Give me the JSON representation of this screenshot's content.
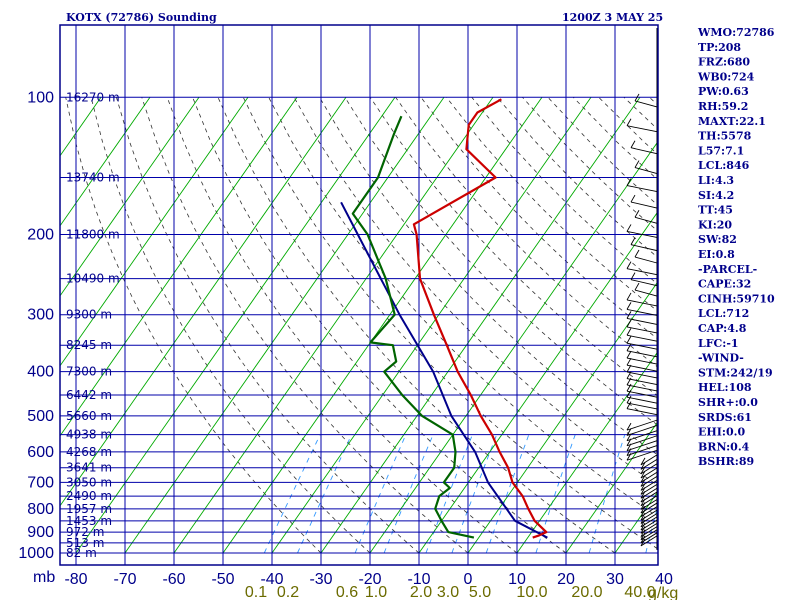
{
  "chart_data": {
    "type": "skew-t",
    "title": "KOTX (72786) Sounding",
    "valid_time": "1200Z  3 MAY 25",
    "y_axis": {
      "label": "mb",
      "pressure_ticks": [
        "100",
        "200",
        "300",
        "400",
        "500",
        "600",
        "700",
        "800",
        "900",
        "1000"
      ],
      "pressure_values": [
        100,
        200,
        300,
        400,
        500,
        600,
        700,
        800,
        900,
        1000
      ]
    },
    "x_axis": {
      "temperature_ticks": [
        "-80",
        "-70",
        "-60",
        "-50",
        "-40",
        "-30",
        "-20",
        "-10",
        "0",
        "10",
        "20",
        "30",
        "40"
      ],
      "mixing_ratio_labels": [
        "0.1",
        "0.2",
        "0.6",
        "1.0",
        "2.0",
        "3.0",
        "5.0",
        "10.0",
        "20.0",
        "40.0"
      ],
      "mixing_ratio_unit": "g/kg"
    },
    "height_labels": [
      {
        "p": 100,
        "text": "16270 m"
      },
      {
        "p": 150,
        "text": "13740 m"
      },
      {
        "p": 200,
        "text": "11800 m"
      },
      {
        "p": 250,
        "text": "10490 m"
      },
      {
        "p": 300,
        "text": "9300 m"
      },
      {
        "p": 350,
        "text": "8245 m"
      },
      {
        "p": 400,
        "text": "7300 m"
      },
      {
        "p": 450,
        "text": "6442 m"
      },
      {
        "p": 500,
        "text": "5660 m"
      },
      {
        "p": 550,
        "text": "4938 m"
      },
      {
        "p": 600,
        "text": "4268 m"
      },
      {
        "p": 650,
        "text": "3641 m"
      },
      {
        "p": 700,
        "text": "3050 m"
      },
      {
        "p": 750,
        "text": "2490 m"
      },
      {
        "p": 800,
        "text": "1957 m"
      },
      {
        "p": 850,
        "text": "1453 m"
      },
      {
        "p": 900,
        "text": "972 m"
      },
      {
        "p": 950,
        "text": "513 m"
      },
      {
        "p": 1000,
        "text": "82 m"
      }
    ],
    "temperature_profile": {
      "color": "#cc0000",
      "points": [
        [
          925,
          11
        ],
        [
          915,
          12
        ],
        [
          900,
          13
        ],
        [
          850,
          9
        ],
        [
          800,
          6
        ],
        [
          750,
          3
        ],
        [
          700,
          -1
        ],
        [
          650,
          -4
        ],
        [
          600,
          -8
        ],
        [
          550,
          -12
        ],
        [
          500,
          -17
        ],
        [
          450,
          -22
        ],
        [
          400,
          -28
        ],
        [
          350,
          -34
        ],
        [
          300,
          -41
        ],
        [
          250,
          -49
        ],
        [
          200,
          -56
        ],
        [
          190,
          -58
        ],
        [
          150,
          -48
        ],
        [
          130,
          -58
        ],
        [
          115,
          -61
        ],
        [
          108,
          -61
        ],
        [
          101,
          -58
        ]
      ]
    },
    "dewpoint_profile": {
      "color": "#006400",
      "points": [
        [
          925,
          -1
        ],
        [
          900,
          -7
        ],
        [
          850,
          -10
        ],
        [
          800,
          -13
        ],
        [
          750,
          -14
        ],
        [
          720,
          -13
        ],
        [
          700,
          -15
        ],
        [
          650,
          -15
        ],
        [
          600,
          -17
        ],
        [
          550,
          -20
        ],
        [
          500,
          -29
        ],
        [
          450,
          -36
        ],
        [
          400,
          -43
        ],
        [
          380,
          -42
        ],
        [
          350,
          -45
        ],
        [
          345,
          -50
        ],
        [
          300,
          -49
        ],
        [
          250,
          -56
        ],
        [
          200,
          -66
        ],
        [
          180,
          -72
        ],
        [
          150,
          -72
        ],
        [
          120,
          -75
        ],
        [
          110,
          -76
        ]
      ]
    },
    "parcel_profile": {
      "color": "#00008b",
      "points": [
        [
          925,
          14
        ],
        [
          850,
          5
        ],
        [
          700,
          -6
        ],
        [
          600,
          -13
        ],
        [
          500,
          -23
        ],
        [
          400,
          -33
        ],
        [
          300,
          -48
        ],
        [
          200,
          -68
        ],
        [
          170,
          -76
        ]
      ]
    },
    "indices": [
      "WMO:72786",
      "TP:208",
      "FRZ:680",
      "WB0:724",
      "PW:0.63",
      "RH:59.2",
      "MAXT:22.1",
      "TH:5578",
      "L57:7.1",
      "LCL:846",
      "LI:4.3",
      "SI:4.2",
      "TT:45",
      "KI:20",
      "SW:82",
      "EI:0.8",
      "-PARCEL-",
      "CAPE:32",
      "CINH:59710",
      "LCL:712",
      "CAP:4.8",
      "LFC:-1",
      "-WIND-",
      "STM:242/19",
      "HEL:108",
      "SHR+:0.0",
      "SRDS:61",
      "EHI:0.0",
      "BRN:0.4",
      "BSHR:89"
    ],
    "wind_barbs_present": true,
    "colors": {
      "frame": "#00008b",
      "grid": "#0000aa",
      "isotherm": "#00aa00",
      "dry_adiabat": "#333333",
      "mixing_ratio": "#3399ff",
      "temperature": "#cc0000",
      "dewpoint": "#006400",
      "parcel": "#00008b"
    }
  }
}
